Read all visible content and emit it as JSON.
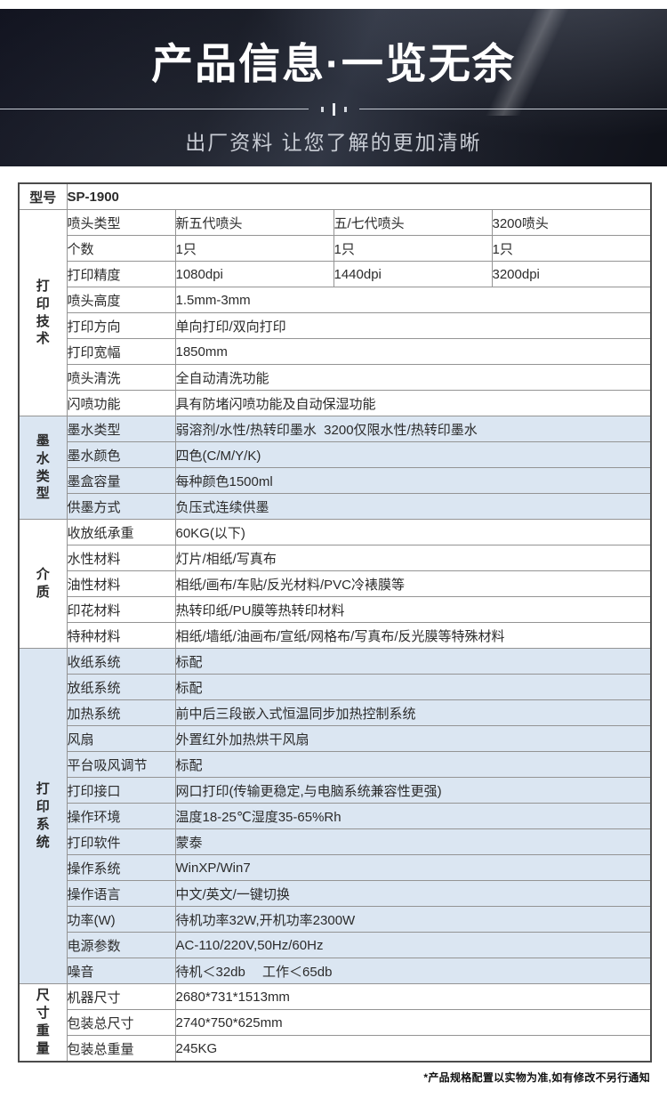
{
  "header": {
    "title": "产品信息·一览无余",
    "subtitle": "出厂资料 让您了解的更加清晰"
  },
  "table": {
    "model_label": "型号",
    "model_value": "SP-1900",
    "groups": [
      {
        "label": "打印技术",
        "shaded": false,
        "rows": [
          {
            "label": "喷头类型",
            "values": [
              "新五代喷头",
              "五/七代喷头",
              "3200喷头"
            ]
          },
          {
            "label": "个数",
            "values": [
              "1只",
              "1只",
              "1只"
            ]
          },
          {
            "label": "打印精度",
            "values": [
              "1080dpi",
              "1440dpi",
              "3200dpi"
            ]
          },
          {
            "label": "喷头高度",
            "value": "1.5mm-3mm"
          },
          {
            "label": "打印方向",
            "value": "单向打印/双向打印"
          },
          {
            "label": "打印宽幅",
            "value": "1850mm"
          },
          {
            "label": "喷头清洗",
            "value": "全自动清洗功能"
          },
          {
            "label": "闪喷功能",
            "value": "具有防堵闪喷功能及自动保湿功能"
          }
        ]
      },
      {
        "label": "墨水类型",
        "shaded": true,
        "rows": [
          {
            "label": "墨水类型",
            "value": "弱溶剂/水性/热转印墨水  3200仅限水性/热转印墨水"
          },
          {
            "label": "墨水颜色",
            "value": "四色(C/M/Y/K)"
          },
          {
            "label": "墨盒容量",
            "value": "每种颜色1500ml"
          },
          {
            "label": "供墨方式",
            "value": "负压式连续供墨"
          }
        ]
      },
      {
        "label": "介质",
        "shaded": false,
        "rows": [
          {
            "label": "收放纸承重",
            "value": "60KG(以下)"
          },
          {
            "label": "水性材料",
            "value": "灯片/相纸/写真布"
          },
          {
            "label": "油性材料",
            "value": "相纸/画布/车贴/反光材料/PVC冷裱膜等"
          },
          {
            "label": "印花材料",
            "value": "热转印纸/PU膜等热转印材料"
          },
          {
            "label": "特种材料",
            "value": "相纸/墙纸/油画布/宣纸/网格布/写真布/反光膜等特殊材料"
          }
        ]
      },
      {
        "label": "打印系统",
        "shaded": true,
        "rows": [
          {
            "label": "收纸系统",
            "value": "标配"
          },
          {
            "label": "放纸系统",
            "value": "标配"
          },
          {
            "label": "加热系统",
            "value": "前中后三段嵌入式恒温同步加热控制系统"
          },
          {
            "label": "风扇",
            "value": "外置红外加热烘干风扇"
          },
          {
            "label": "平台吸风调节",
            "value": "标配"
          },
          {
            "label": "打印接口",
            "value": "网口打印(传输更稳定,与电脑系统兼容性更强)"
          },
          {
            "label": "操作环境",
            "value": "温度18-25℃湿度35-65%Rh"
          },
          {
            "label": "打印软件",
            "value": "蒙泰"
          },
          {
            "label": "操作系统",
            "value": "WinXP/Win7"
          },
          {
            "label": "操作语言",
            "value": "中文/英文/一键切换"
          },
          {
            "label": "功率(W)",
            "value": "待机功率32W,开机功率2300W"
          },
          {
            "label": "电源参数",
            "value": "AC-110/220V,50Hz/60Hz"
          },
          {
            "label": "噪音",
            "value": "待机＜32db　 工作＜65db"
          }
        ]
      },
      {
        "label": "尺寸重量",
        "shaded": false,
        "rows": [
          {
            "label": "机器尺寸",
            "value": "2680*731*1513mm"
          },
          {
            "label": "包装总尺寸",
            "value": "2740*750*625mm"
          },
          {
            "label": "包装总重量",
            "value": "245KG"
          }
        ]
      }
    ]
  },
  "footer": {
    "note": "*产品规格配置以实物为准,如有修改不另行通知"
  },
  "colors": {
    "accent_blue": "#1a6bc8",
    "shaded_row_bg": "#dbe6f2",
    "banner_bg": "#171a22",
    "border_gray": "#949494"
  }
}
